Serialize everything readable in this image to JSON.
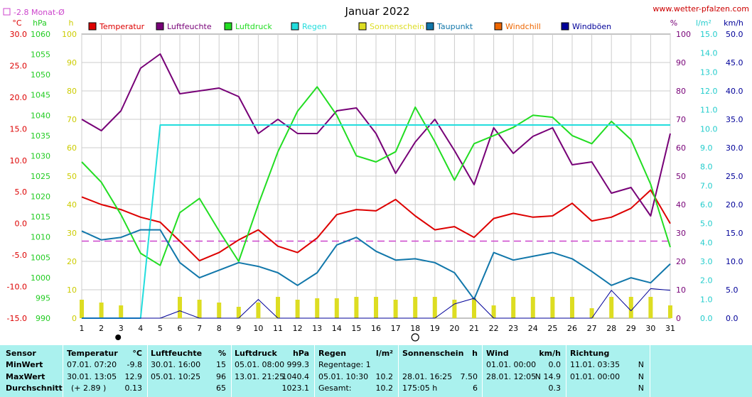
{
  "title": "Januar 2022",
  "site": "www.wetter-pfalzen.com",
  "avg_label": "-2.8 Monat-Ø",
  "units": {
    "temp": "°C",
    "hpa": "hPa",
    "h": "h",
    "pct": "%",
    "lm2": "l/m²",
    "kmh": "km/h"
  },
  "legend": [
    {
      "name": "Temperatur",
      "color": "#dd0000"
    },
    {
      "name": "Luftfeuchte",
      "color": "#770077"
    },
    {
      "name": "Luftdruck",
      "color": "#22dd22"
    },
    {
      "name": "Regen",
      "color": "#22dddd"
    },
    {
      "name": "Sonnenschein",
      "color": "#dddd22"
    },
    {
      "name": "Taupunkt",
      "color": "#1177aa"
    },
    {
      "name": "Windchill",
      "color": "#ee6600"
    },
    {
      "name": "Windböen",
      "color": "#000099"
    }
  ],
  "colors": {
    "temp": "#dd0000",
    "hum": "#770077",
    "press": "#22dd22",
    "rain": "#22dddd",
    "sun": "#dddd22",
    "dew": "#1177aa",
    "gust": "#000099",
    "avg": "#cc44cc",
    "grid": "#cccccc"
  },
  "chart_data": {
    "type": "line",
    "title": "Januar 2022",
    "x": [
      1,
      2,
      3,
      4,
      5,
      6,
      7,
      8,
      9,
      10,
      11,
      12,
      13,
      14,
      15,
      16,
      17,
      18,
      19,
      20,
      21,
      22,
      23,
      24,
      25,
      26,
      27,
      28,
      29,
      30,
      31
    ],
    "axes": {
      "temp": {
        "label": "°C",
        "range": [
          -15,
          30
        ],
        "ticks": [
          "30.0",
          "25.0",
          "20.0",
          "15.0",
          "10.0",
          "5.0",
          "0.0",
          "-5.0",
          "-10.0",
          "-15.0"
        ]
      },
      "pressure": {
        "label": "hPa",
        "range": [
          990,
          1060
        ],
        "ticks": [
          "1060",
          "1055",
          "1050",
          "1045",
          "1040",
          "1035",
          "1030",
          "1025",
          "1020",
          "1015",
          "1010",
          "1005",
          "1000",
          "995",
          "990"
        ]
      },
      "sun_h": {
        "label": "h",
        "range": [
          0,
          100
        ],
        "ticks": [
          "100",
          "90",
          "80",
          "70",
          "60",
          "50",
          "40",
          "30",
          "20",
          "10",
          "0"
        ]
      },
      "hum_pct": {
        "label": "%",
        "range": [
          0,
          100
        ],
        "ticks": [
          "100",
          "90",
          "80",
          "70",
          "60",
          "50",
          "40",
          "30",
          "20",
          "10",
          "0"
        ]
      },
      "rain_lm2": {
        "label": "l/m²",
        "range": [
          0,
          15
        ],
        "ticks": [
          "15.0",
          "14.0",
          "13.0",
          "12.0",
          "11.0",
          "10.0",
          "9.0",
          "8.0",
          "7.0",
          "6.0",
          "5.0",
          "4.0",
          "3.0",
          "2.0",
          "1.0",
          "0.0"
        ]
      },
      "wind_kmh": {
        "label": "km/h",
        "range": [
          0,
          50
        ],
        "ticks": [
          "50.0",
          "45.0",
          "40.0",
          "35.0",
          "30.0",
          "25.0",
          "20.0",
          "15.0",
          "10.0",
          "5.0",
          "0.0"
        ]
      }
    },
    "monthly_avg_temp": -2.8,
    "series": [
      {
        "name": "Temperatur",
        "axis": "temp",
        "values": [
          4.2,
          3.0,
          2.2,
          1.0,
          0.2,
          -2.8,
          -5.9,
          -4.6,
          -2.6,
          -1.0,
          -3.6,
          -4.6,
          -2.3,
          1.4,
          2.2,
          2.0,
          3.8,
          1.2,
          -1.0,
          -0.5,
          -2.2,
          0.8,
          1.6,
          1.0,
          1.2,
          3.2,
          0.4,
          1.0,
          2.4,
          5.3,
          0.0
        ]
      },
      {
        "name": "Luftfeuchte",
        "axis": "hum_pct",
        "values": [
          70,
          66,
          73,
          88,
          93,
          79,
          80,
          81,
          78,
          65,
          70,
          65,
          65,
          73,
          74,
          65,
          51,
          62,
          70,
          59,
          47,
          67,
          58,
          64,
          67,
          54,
          55,
          44,
          46,
          36,
          65
        ]
      },
      {
        "name": "Luftdruck",
        "axis": "pressure",
        "values": [
          1028.5,
          1023.5,
          1015.5,
          1006,
          1003,
          1016,
          1019.5,
          1011.5,
          1004,
          1018,
          1031,
          1041,
          1047,
          1040,
          1030,
          1028.5,
          1031,
          1042,
          1033.5,
          1024,
          1033,
          1035,
          1037,
          1040,
          1039.5,
          1035,
          1033,
          1038.5,
          1034,
          1023,
          1007.5
        ]
      },
      {
        "name": "Regen",
        "axis": "rain_lm2",
        "values": [
          0,
          0,
          0,
          0,
          10.2,
          10.2,
          10.2,
          10.2,
          10.2,
          10.2,
          10.2,
          10.2,
          10.2,
          10.2,
          10.2,
          10.2,
          10.2,
          10.2,
          10.2,
          10.2,
          10.2,
          10.2,
          10.2,
          10.2,
          10.2,
          10.2,
          10.2,
          10.2,
          10.2,
          10.2,
          10.2
        ]
      },
      {
        "name": "Sonnenschein",
        "axis": "sun_h",
        "values": [
          6.5,
          5.5,
          4.5,
          0,
          0,
          7.5,
          6.5,
          5.5,
          4,
          5.5,
          7.5,
          6.5,
          7,
          7,
          7.5,
          7.5,
          6.5,
          7.5,
          7.5,
          6.5,
          7,
          4.5,
          7.5,
          7.5,
          7.5,
          7.5,
          3.5,
          7.5,
          7.5,
          7.5,
          4.5
        ]
      },
      {
        "name": "Taupunkt",
        "axis": "temp",
        "values": [
          -1.2,
          -2.6,
          -2.2,
          -1.0,
          -1.0,
          -6.2,
          -8.6,
          -7.4,
          -6.2,
          -6.8,
          -7.8,
          -9.8,
          -7.8,
          -3.4,
          -2.2,
          -4.4,
          -5.8,
          -5.6,
          -6.2,
          -7.8,
          -12.0,
          -4.6,
          -5.8,
          -5.2,
          -4.6,
          -5.6,
          -7.6,
          -9.8,
          -8.6,
          -9.4,
          -6.4
        ]
      },
      {
        "name": "Windböen",
        "axis": "wind_kmh",
        "values": [
          0,
          0,
          0,
          0,
          0,
          1.3,
          0,
          0,
          0,
          3.3,
          0,
          0,
          0,
          0,
          0,
          0,
          0,
          0,
          0,
          2.5,
          3.5,
          0,
          0,
          0,
          0,
          0,
          0,
          4.9,
          1.3,
          5.2,
          4.9
        ]
      }
    ]
  },
  "stats_table": {
    "sensor": {
      "title": "Sensor",
      "rows": [
        "MinWert",
        "MaxWert",
        "Durchschnitt"
      ]
    },
    "groups": [
      {
        "title": "Temperatur",
        "unit": "°C",
        "rows": [
          [
            "07.01.  07:20",
            "-9.8"
          ],
          [
            "30.01.  13:05",
            "12.9"
          ],
          [
            "(+ 2.89 )",
            "0.13"
          ]
        ]
      },
      {
        "title": "Luftfeuchte",
        "unit": "%",
        "rows": [
          [
            "30.01.  16:00",
            "15"
          ],
          [
            "05.01.  10:25",
            "96"
          ],
          [
            "",
            "65"
          ]
        ]
      },
      {
        "title": "Luftdruck",
        "unit": "hPa",
        "rows": [
          [
            "05.01.  08:00",
            "999.3"
          ],
          [
            "13.01.  21:25",
            "1040.4"
          ],
          [
            "",
            "1023.1"
          ]
        ]
      },
      {
        "title": "Regen",
        "unit": "l/m²",
        "rows": [
          [
            "Regentage: 1",
            ""
          ],
          [
            "05.01.  10:30",
            "10.2"
          ],
          [
            "Gesamt:",
            "10.2"
          ]
        ]
      },
      {
        "title": "Sonnenschein",
        "unit": "h",
        "rows": [
          [
            "",
            ""
          ],
          [
            "28.01.  16:25",
            "7.50"
          ],
          [
            "175:05 h",
            "6"
          ]
        ]
      },
      {
        "title": "Wind",
        "unit": "km/h",
        "rows": [
          [
            "01.01.  00:00",
            "0.0"
          ],
          [
            "28.01.  12:05",
            "N 14.9"
          ],
          [
            "",
            "0.3"
          ]
        ]
      },
      {
        "title": "Richtung",
        "unit": "",
        "rows": [
          [
            "11.01.  03:35",
            "N"
          ],
          [
            "01.01.  00:00",
            "N"
          ],
          [
            "",
            "N"
          ]
        ]
      }
    ]
  }
}
